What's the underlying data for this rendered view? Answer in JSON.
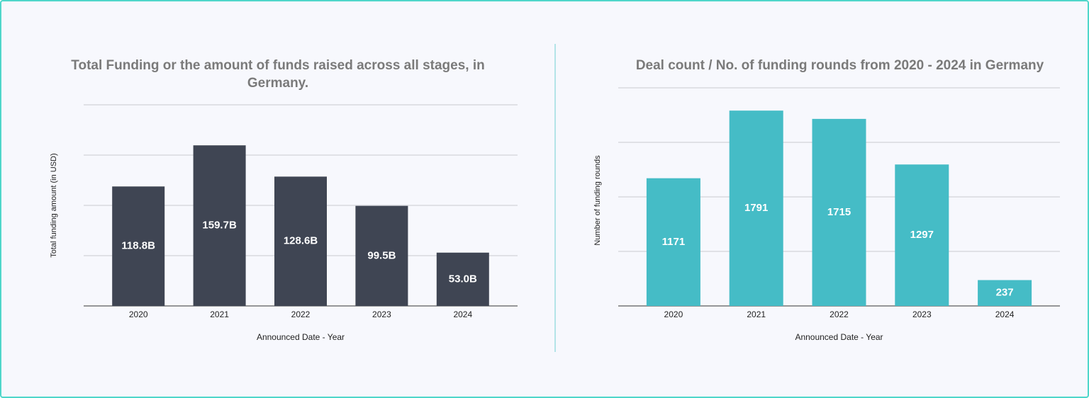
{
  "chart_data": [
    {
      "type": "bar",
      "title": "Total Funding or the amount of funds raised across all stages, in Germany.",
      "x_label": "Announced Date - Year",
      "y_label": "Total funding amount (in USD)",
      "categories": [
        "2020",
        "2021",
        "2022",
        "2023",
        "2024"
      ],
      "values": [
        118.8,
        159.7,
        128.6,
        99.5,
        53.0
      ],
      "value_labels": [
        "118.8B",
        "159.7B",
        "128.6B",
        "99.5B",
        "53.0B"
      ],
      "color": "#3f4553",
      "ylim": [
        0,
        200
      ],
      "yticks": [
        0,
        50,
        100,
        150,
        200
      ],
      "grid": true
    },
    {
      "type": "bar",
      "title": "Deal count / No. of funding rounds from 2020 - 2024 in Germany",
      "x_label": "Announced Date - Year",
      "y_label": "Number of funding rounds",
      "categories": [
        "2020",
        "2021",
        "2022",
        "2023",
        "2024"
      ],
      "values": [
        1171,
        1791,
        1715,
        1297,
        237
      ],
      "color": "#45bcc6",
      "ylim": [
        0,
        2000
      ],
      "yticks": [
        0,
        500,
        1000,
        1500,
        2000
      ],
      "grid": true
    }
  ]
}
